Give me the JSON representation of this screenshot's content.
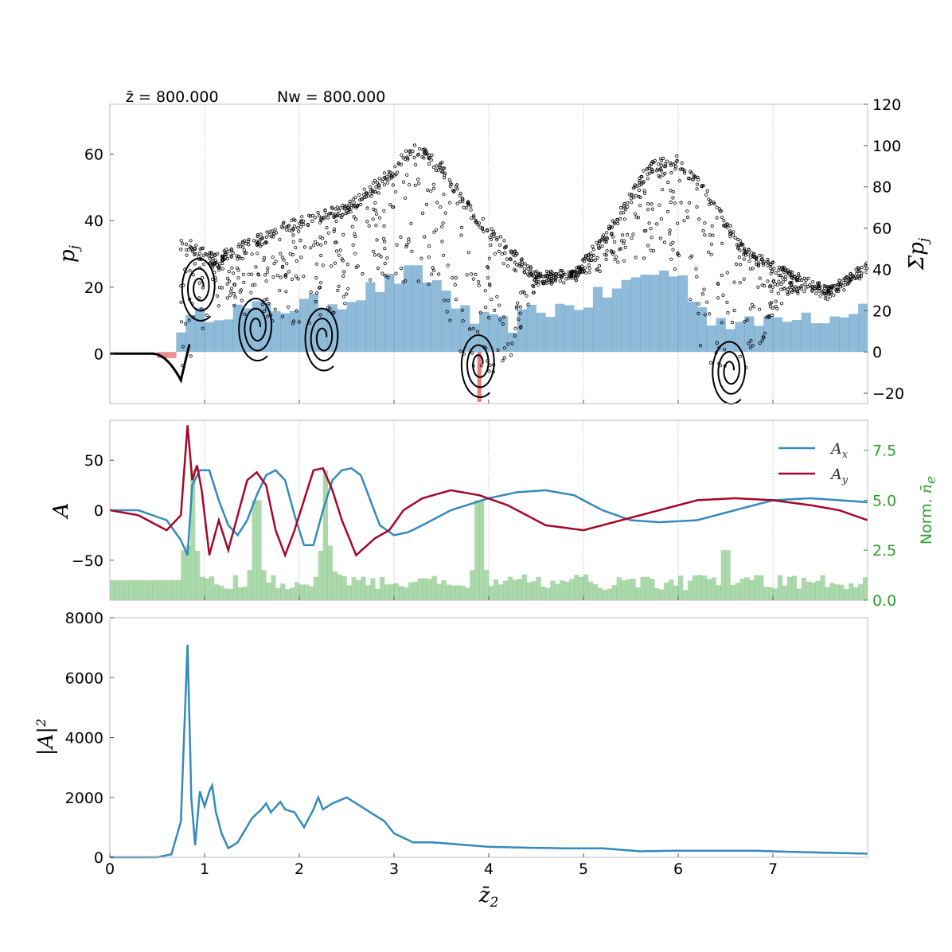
{
  "annotations": {
    "zbar_label": "z̄ = 800.000",
    "nw_label": "Nw = 800.000"
  },
  "colors": {
    "phase_points": "#000000",
    "histogram_blue": "#1f77b4",
    "histogram_red": "#d62728",
    "ax_line": "#348abd",
    "ay_line": "#a60628",
    "density_green": "#2ca02c",
    "power_line": "#348abd"
  },
  "chart_data": [
    {
      "type": "scatter",
      "panel": "phase_space",
      "ylabel": "p_j",
      "y2label": "Σp_j",
      "xlim": [
        0,
        8
      ],
      "ylim": [
        -15,
        75
      ],
      "y2lim": [
        -25,
        120
      ],
      "yticks": [
        0,
        20,
        40,
        60
      ],
      "y2ticks": [
        -20,
        0,
        20,
        40,
        60,
        80,
        100,
        120
      ],
      "grid": "vertical",
      "histogram_bins": 80,
      "histogram_note": "blue bars positive sum, red bars negative sum",
      "scatter_envelope_upper": [
        [
          0.8,
          35
        ],
        [
          1.1,
          30
        ],
        [
          1.5,
          35
        ],
        [
          2.0,
          42
        ],
        [
          2.5,
          45
        ],
        [
          3.0,
          57
        ],
        [
          3.2,
          64
        ],
        [
          3.5,
          58
        ],
        [
          3.8,
          45
        ],
        [
          4.2,
          33
        ],
        [
          4.5,
          25
        ],
        [
          4.9,
          25
        ],
        [
          5.3,
          40
        ],
        [
          5.7,
          58
        ],
        [
          6.0,
          60
        ],
        [
          6.3,
          50
        ],
        [
          6.7,
          32
        ],
        [
          7.2,
          25
        ],
        [
          7.6,
          20
        ],
        [
          8.0,
          28
        ]
      ],
      "scatter_envelope_lower": [
        [
          0.8,
          -5
        ],
        [
          1.1,
          15
        ],
        [
          1.5,
          10
        ],
        [
          2.0,
          8
        ],
        [
          2.5,
          12
        ],
        [
          3.0,
          20
        ],
        [
          3.2,
          22
        ],
        [
          3.5,
          14
        ],
        [
          3.8,
          -10
        ],
        [
          4.2,
          -5
        ],
        [
          4.5,
          20
        ],
        [
          4.9,
          24
        ],
        [
          5.3,
          25
        ],
        [
          5.7,
          28
        ],
        [
          6.0,
          25
        ],
        [
          6.3,
          -10
        ],
        [
          6.7,
          -5
        ],
        [
          7.2,
          18
        ],
        [
          7.6,
          18
        ],
        [
          8.0,
          24
        ]
      ]
    },
    {
      "type": "line",
      "panel": "field",
      "ylabel": "A",
      "y2label": "Norm. n̄_e",
      "xlim": [
        0,
        8
      ],
      "ylim": [
        -90,
        90
      ],
      "y2lim": [
        0,
        9
      ],
      "yticks": [
        -50,
        0,
        50
      ],
      "y2ticks": [
        0.0,
        2.5,
        5.0,
        7.5
      ],
      "y2ticklabels": [
        "0.0",
        "2.5",
        "5.0",
        "7.5"
      ],
      "legend": "top-right",
      "series": [
        {
          "name": "A_x",
          "x": [
            0,
            0.3,
            0.6,
            0.75,
            0.82,
            0.87,
            0.95,
            1.05,
            1.15,
            1.25,
            1.35,
            1.45,
            1.55,
            1.65,
            1.75,
            1.85,
            1.95,
            2.05,
            2.15,
            2.25,
            2.35,
            2.45,
            2.55,
            2.65,
            2.75,
            2.85,
            3.0,
            3.15,
            3.3,
            3.6,
            4.0,
            4.3,
            4.6,
            4.9,
            5.2,
            5.5,
            5.8,
            6.2,
            6.6,
            7.0,
            7.4,
            7.7,
            8.0
          ],
          "y": [
            0,
            0,
            -10,
            -30,
            -45,
            25,
            40,
            40,
            10,
            -15,
            -25,
            -10,
            15,
            35,
            40,
            30,
            -5,
            -35,
            -35,
            0,
            30,
            40,
            42,
            35,
            10,
            -15,
            -25,
            -22,
            -15,
            0,
            12,
            18,
            20,
            15,
            0,
            -10,
            -12,
            -10,
            0,
            10,
            12,
            10,
            8
          ]
        },
        {
          "name": "A_y",
          "x": [
            0,
            0.3,
            0.6,
            0.75,
            0.82,
            0.87,
            0.92,
            0.97,
            1.05,
            1.15,
            1.25,
            1.35,
            1.45,
            1.55,
            1.65,
            1.75,
            1.85,
            1.95,
            2.05,
            2.15,
            2.25,
            2.35,
            2.45,
            2.6,
            2.8,
            2.95,
            3.1,
            3.3,
            3.6,
            3.9,
            4.2,
            4.6,
            5.0,
            5.4,
            5.8,
            6.2,
            6.6,
            7.0,
            7.4,
            7.7,
            8.0
          ],
          "y": [
            0,
            -5,
            -20,
            -5,
            85,
            30,
            45,
            20,
            -45,
            -10,
            -40,
            -5,
            30,
            38,
            25,
            -20,
            -45,
            -20,
            10,
            40,
            42,
            20,
            -10,
            -45,
            -28,
            -20,
            0,
            12,
            20,
            15,
            5,
            -15,
            -20,
            -10,
            0,
            10,
            12,
            10,
            5,
            0,
            -10
          ]
        }
      ],
      "density_bins_note": "green histogram, 160 bins, normalized electron density",
      "density_peaks": [
        [
          0.8,
          2.5
        ],
        [
          0.87,
          6.5
        ],
        [
          1.55,
          5.0
        ],
        [
          2.28,
          6.5
        ],
        [
          3.9,
          5.0
        ],
        [
          6.5,
          2.5
        ]
      ]
    },
    {
      "type": "line",
      "panel": "power",
      "ylabel": "|A|^2",
      "xlabel": "z̄_2",
      "xlim": [
        0,
        8
      ],
      "ylim": [
        0,
        8000
      ],
      "yticks": [
        0,
        2000,
        4000,
        6000,
        8000
      ],
      "xticks": [
        0,
        1,
        2,
        3,
        4,
        5,
        6,
        7
      ],
      "series": [
        {
          "name": "",
          "x": [
            0,
            0.5,
            0.65,
            0.75,
            0.82,
            0.86,
            0.9,
            0.95,
            1.0,
            1.05,
            1.08,
            1.12,
            1.18,
            1.25,
            1.35,
            1.5,
            1.6,
            1.65,
            1.7,
            1.8,
            1.85,
            1.95,
            2.05,
            2.15,
            2.2,
            2.25,
            2.35,
            2.5,
            2.6,
            2.8,
            2.9,
            3.0,
            3.2,
            3.4,
            3.8,
            4.0,
            4.4,
            4.8,
            5.2,
            5.6,
            6.0,
            6.4,
            6.8,
            7.2,
            7.6,
            8.0
          ],
          "y": [
            0,
            0,
            100,
            1200,
            7100,
            2000,
            400,
            2200,
            1700,
            2200,
            2400,
            1500,
            800,
            300,
            500,
            1300,
            1600,
            1800,
            1500,
            1850,
            1600,
            1500,
            1000,
            1600,
            2000,
            1600,
            1800,
            2000,
            1800,
            1400,
            1200,
            800,
            500,
            500,
            400,
            350,
            320,
            300,
            300,
            200,
            220,
            220,
            220,
            180,
            150,
            120
          ]
        }
      ]
    }
  ]
}
